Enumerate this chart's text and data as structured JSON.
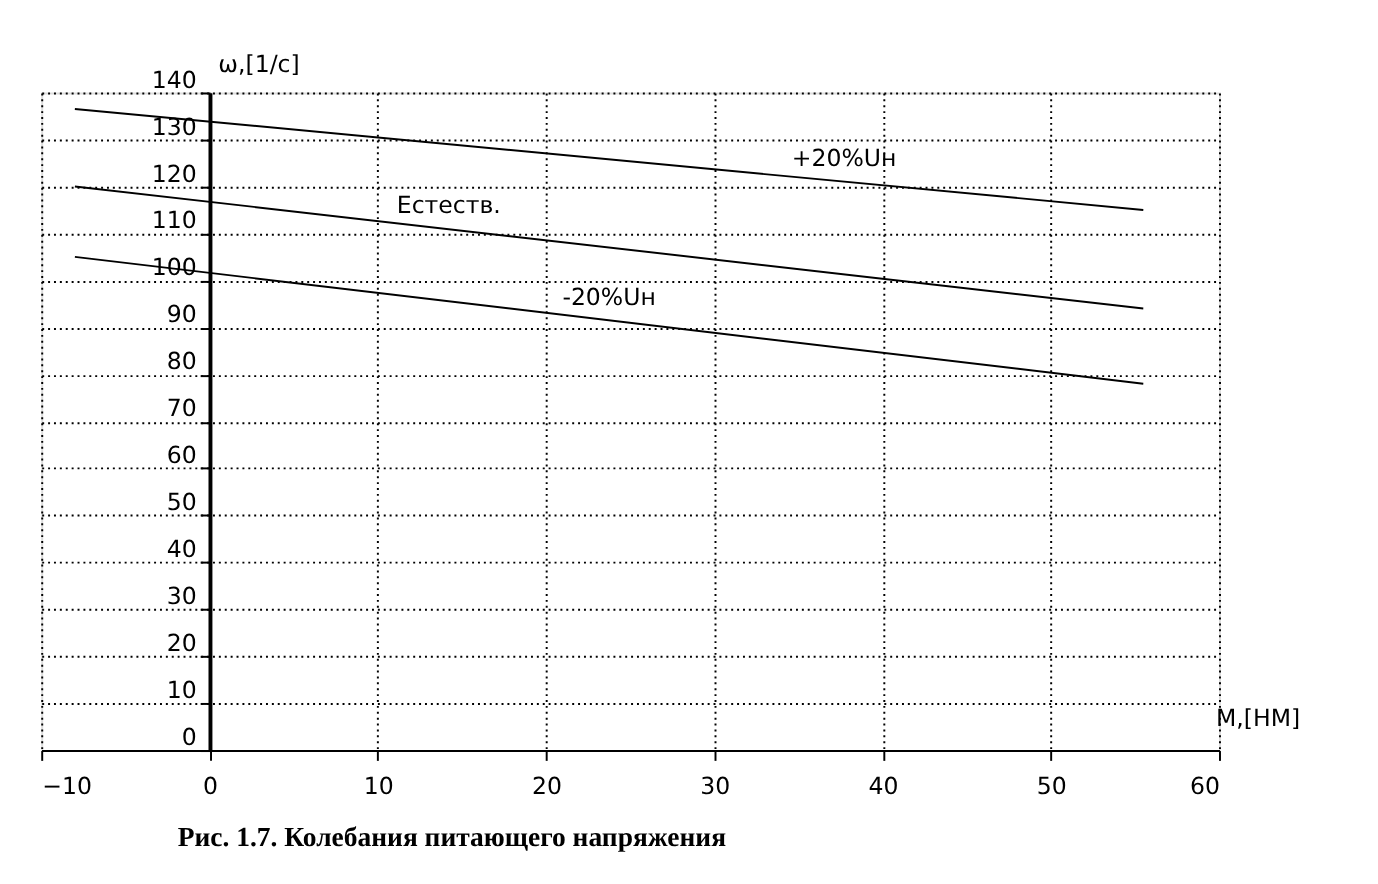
{
  "chart_data": {
    "type": "line",
    "xlabel": "M,[НМ]",
    "ylabel": "ω,[1/с]",
    "x": [
      -8,
      55.5
    ],
    "series": [
      {
        "name": "+20%Uн",
        "color": "#000000",
        "values": [
          136.5,
          115
        ]
      },
      {
        "name": "Естеств.",
        "color": "#000000",
        "values": [
          120,
          94
        ]
      },
      {
        "name": "-20%Uн",
        "color": "#000000",
        "values": [
          105,
          78
        ]
      }
    ],
    "xlim": [
      -10,
      60
    ],
    "xticks": [
      -10,
      0,
      10,
      20,
      30,
      40,
      50,
      60
    ],
    "ylim": [
      0,
      140
    ],
    "yticks": [
      0,
      10,
      20,
      30,
      40,
      50,
      60,
      70,
      80,
      90,
      100,
      110,
      120,
      130,
      140
    ],
    "grid": true,
    "marker": "none",
    "line_style": "solid",
    "legend": false,
    "annotations": [
      "Рис. 1.7.  Колебания питающего напряжения"
    ]
  }
}
